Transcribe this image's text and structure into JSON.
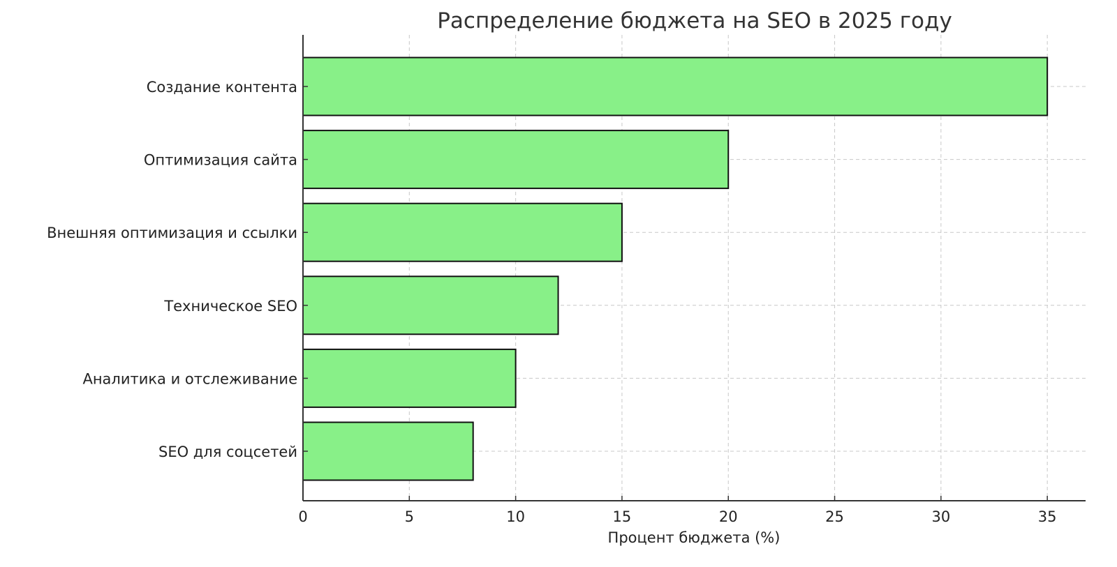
{
  "chart_data": {
    "type": "bar",
    "orientation": "horizontal",
    "title": "Распределение бюджета на SEO в 2025 году",
    "xlabel": "Процент бюджета (%)",
    "ylabel": "",
    "categories": [
      "Создание контента",
      "Оптимизация сайта",
      "Внешняя оптимизация и ссылки",
      "Техническое SEO",
      "Аналитика и отслеживание",
      "SEO для соцсетей"
    ],
    "values": [
      35,
      20,
      15,
      12,
      10,
      8
    ],
    "xlim": [
      0,
      36.8
    ],
    "xticks": [
      0,
      5,
      10,
      15,
      20,
      25,
      30,
      35
    ],
    "grid": true,
    "grid_style": "dashed",
    "bar_color": "#88f088",
    "bar_edge_color": "#111111"
  }
}
